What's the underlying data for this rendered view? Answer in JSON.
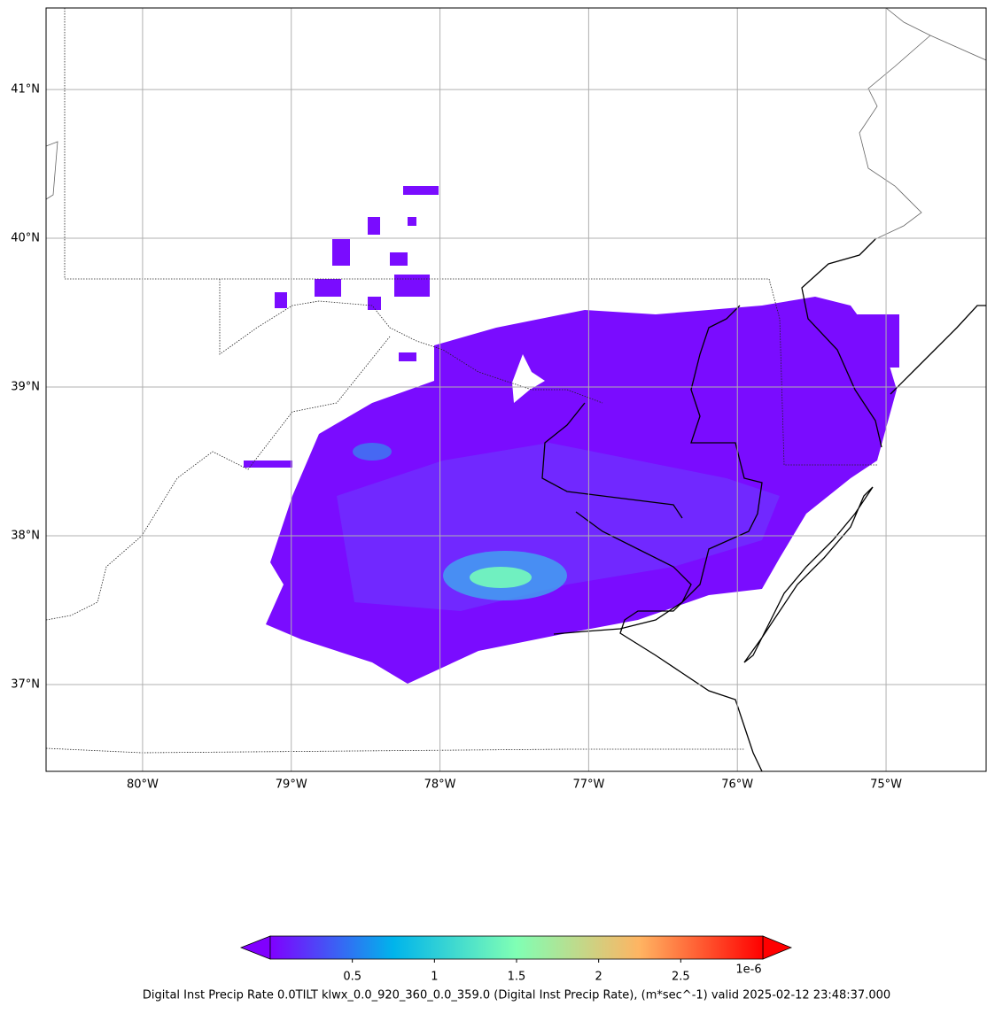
{
  "map": {
    "xlim": [
      -80.649,
      -74.327
    ],
    "ylim": [
      36.417,
      41.548
    ],
    "grid": true,
    "xticks": [
      {
        "value": -80,
        "label": "80°W"
      },
      {
        "value": -79,
        "label": "79°W"
      },
      {
        "value": -78,
        "label": "78°W"
      },
      {
        "value": -77,
        "label": "77°W"
      },
      {
        "value": -76,
        "label": "76°W"
      },
      {
        "value": -75,
        "label": "75°W"
      }
    ],
    "yticks": [
      {
        "value": 37,
        "label": "37°N"
      },
      {
        "value": 38,
        "label": "38°N"
      },
      {
        "value": 39,
        "label": "39°N"
      },
      {
        "value": 40,
        "label": "40°N"
      },
      {
        "value": 41,
        "label": "41°N"
      }
    ]
  },
  "colorbar": {
    "lim": [
      0,
      3
    ],
    "ticks": [
      0.5,
      1.0,
      1.5,
      2.0,
      2.5
    ],
    "offset_label": "1e-6",
    "label": "Digital Inst Precip Rate 0.0TILT klwx_0.0_920_360_0.0_359.0 (Digital Inst Precip Rate), (m*sec^-1) valid 2025-02-12 23:48:37.000",
    "colors": [
      "#8000ff",
      "#00b4eb",
      "#80ffb4",
      "#ffb462",
      "#ff0000"
    ]
  }
}
